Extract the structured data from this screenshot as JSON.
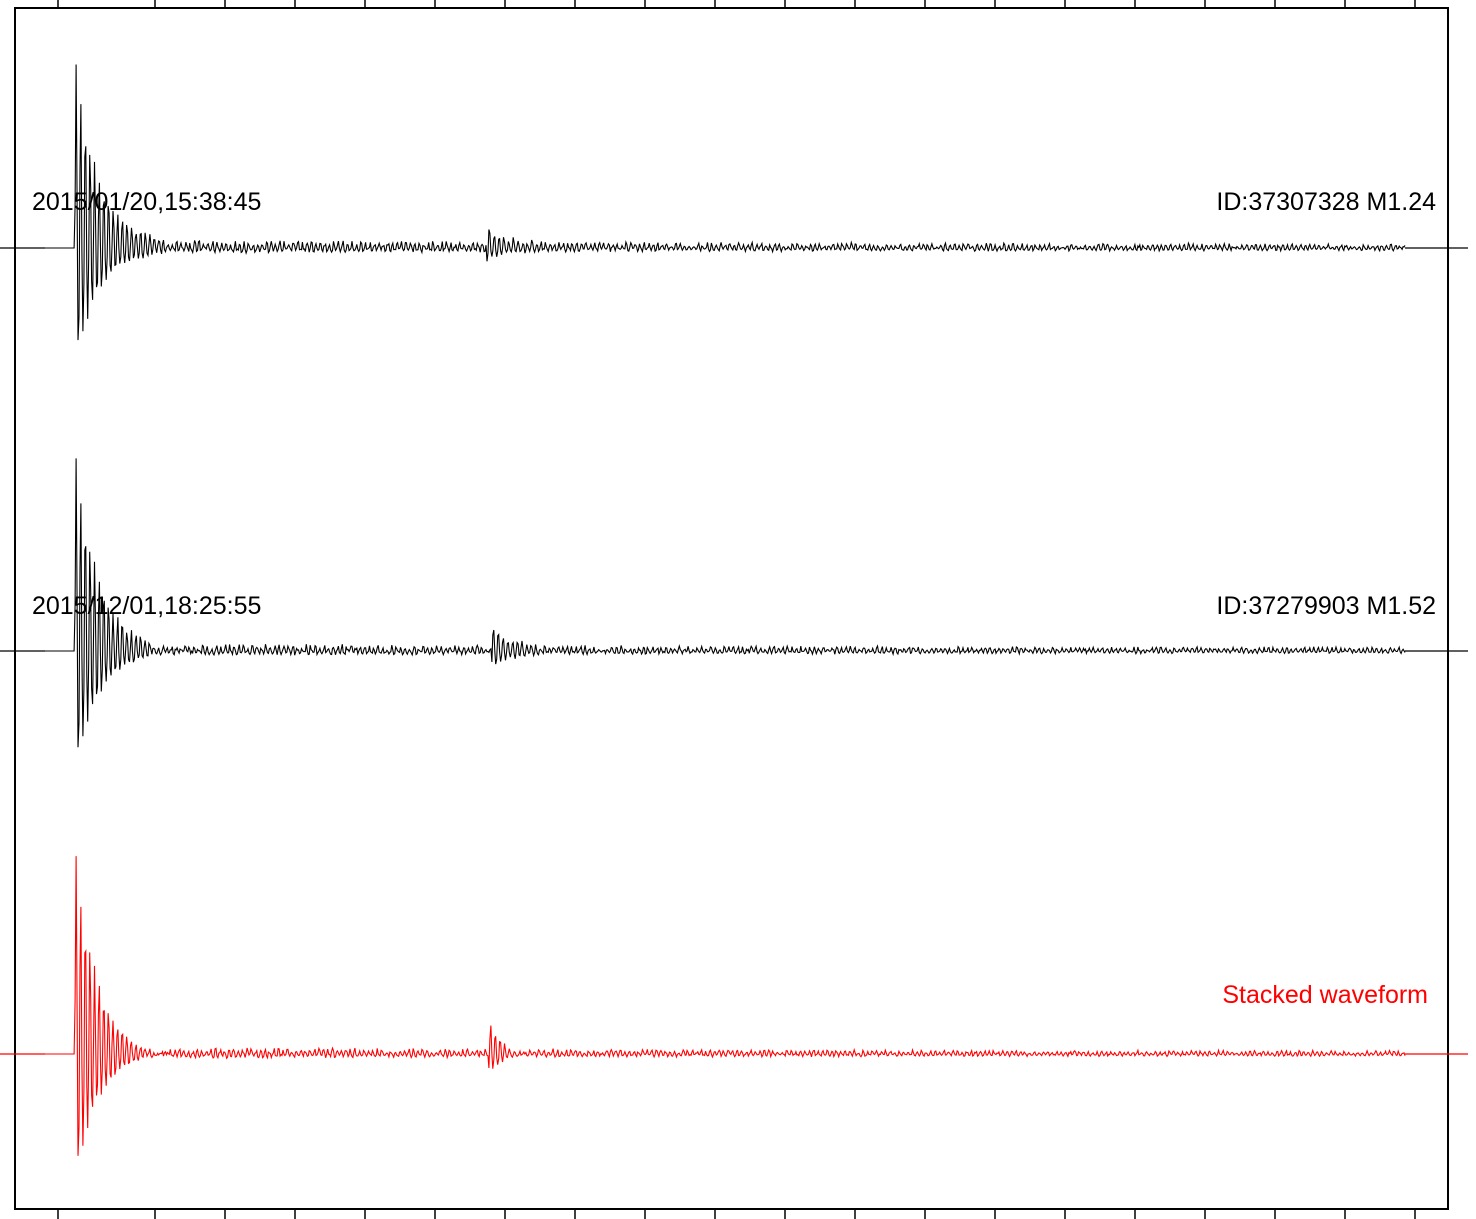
{
  "chart_data": {
    "type": "line",
    "title": "",
    "xlabel": "",
    "ylabel": "",
    "grid": false,
    "colors": {
      "frame": "#000000",
      "trace": "#000000",
      "stack": "#ff0000"
    },
    "traces": [
      {
        "date_label": "2015/01/20,15:38:45",
        "id_label": "ID:37307328 M1.24",
        "color": "#000000",
        "peak_amplitude_up": 201,
        "peak_amplitude_down": 125,
        "arrivals": [
          {
            "onset": 0.022,
            "amplitude": 1.0,
            "period": 0.0034,
            "decay": 0.016
          },
          {
            "onset": 0.325,
            "amplitude": 0.13,
            "period": 0.0035,
            "decay": 0.012
          }
        ],
        "coda_level": 0.045
      },
      {
        "date_label": "2015/12/01,18:25:55",
        "id_label": "ID:37279903 M1.52",
        "color": "#000000",
        "peak_amplitude_up": 201,
        "peak_amplitude_down": 125,
        "arrivals": [
          {
            "onset": 0.022,
            "amplitude": 1.0,
            "period": 0.0034,
            "decay": 0.016
          },
          {
            "onset": 0.328,
            "amplitude": 0.16,
            "period": 0.0035,
            "decay": 0.012
          }
        ],
        "coda_level": 0.04
      },
      {
        "label": "Stacked waveform",
        "color": "#ff0000",
        "peak_amplitude_up": 201,
        "peak_amplitude_down": 128,
        "arrivals": [
          {
            "onset": 0.022,
            "amplitude": 1.0,
            "period": 0.0034,
            "decay": 0.016
          },
          {
            "onset": 0.326,
            "amplitude": 0.15,
            "period": 0.0035,
            "decay": 0.012
          }
        ],
        "coda_level": 0.035
      }
    ],
    "x_ticks_count": 20
  }
}
